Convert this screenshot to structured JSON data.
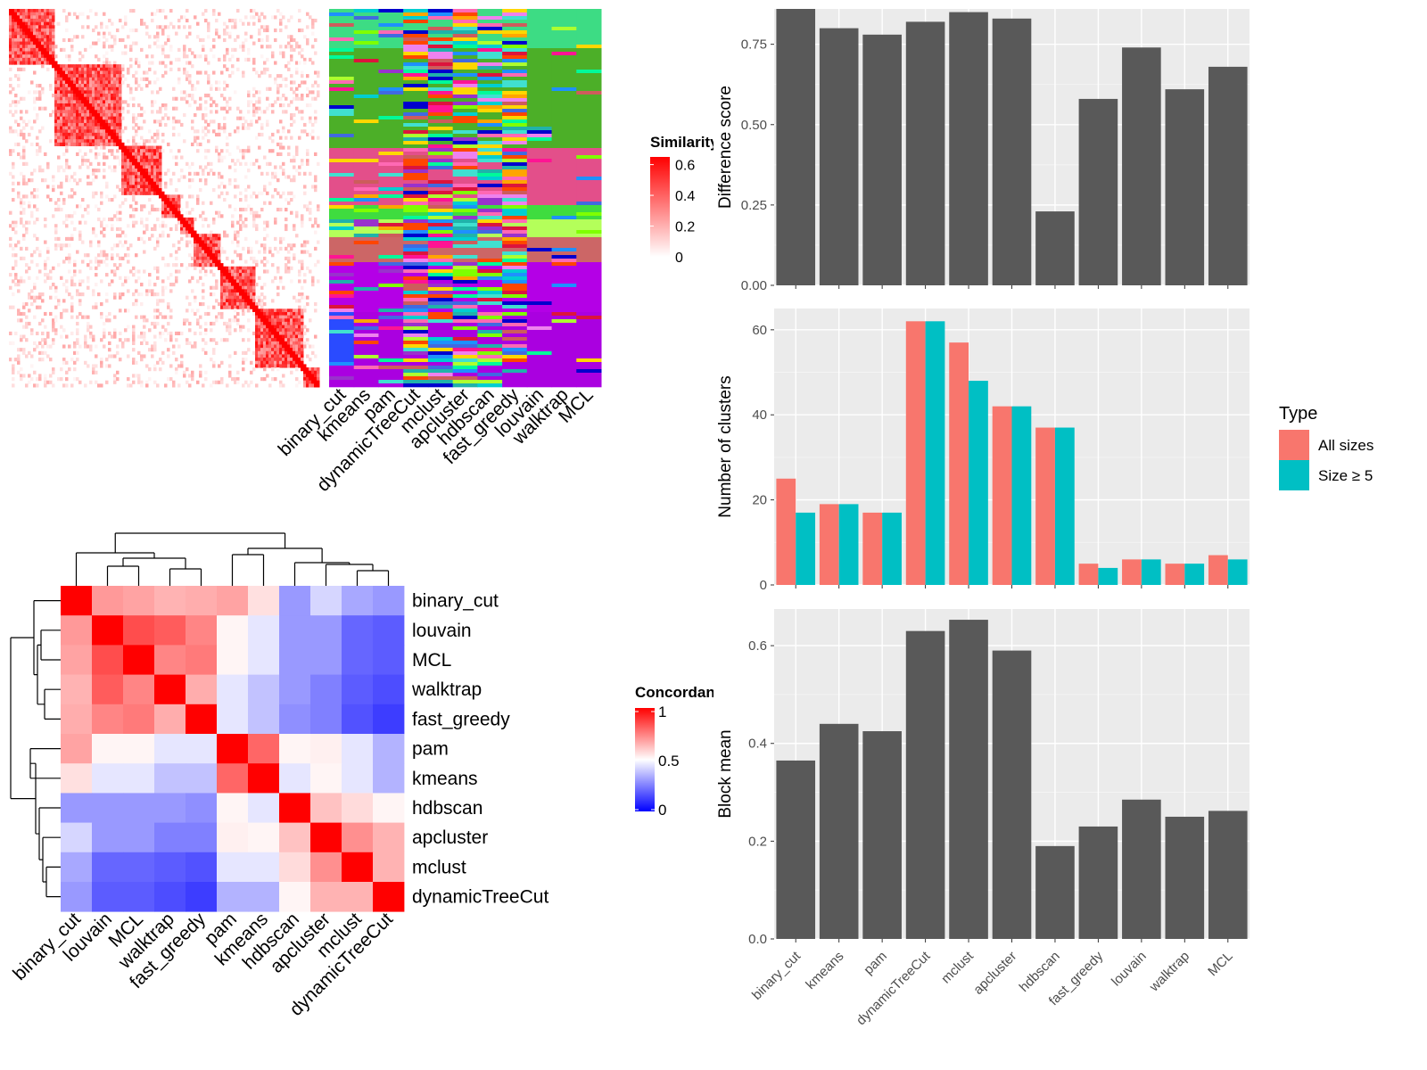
{
  "chart_data": [
    {
      "type": "heatmap",
      "panel": "similarity-matrix",
      "legend": {
        "title": "Similarity",
        "ticks": [
          0,
          0.2,
          0.4,
          0.6
        ],
        "tick_labels": [
          "0",
          "0.2",
          "0.4",
          "0.6"
        ],
        "colors": [
          "#ffffff",
          "#ff0000"
        ]
      },
      "description_colors": {
        "background": "#ffffff",
        "high": "#ff0000"
      }
    },
    {
      "type": "heatmap",
      "panel": "cluster-membership",
      "columns": [
        "binary_cut",
        "kmeans",
        "pam",
        "dynamicTreeCut",
        "mclust",
        "apcluster",
        "hdbscan",
        "fast_greedy",
        "louvain",
        "walktrap",
        "MCL"
      ]
    },
    {
      "type": "heatmap",
      "panel": "concordance",
      "legend": {
        "title": "Concordance",
        "ticks": [
          0,
          0.5,
          1
        ],
        "tick_labels": [
          "0",
          "0.5",
          "1"
        ],
        "colors": [
          "#0000ff",
          "#ffffff",
          "#ff0000"
        ]
      },
      "rows": [
        "binary_cut",
        "louvain",
        "MCL",
        "walktrap",
        "fast_greedy",
        "pam",
        "kmeans",
        "hdbscan",
        "apcluster",
        "mclust",
        "dynamicTreeCut"
      ],
      "cols": [
        "binary_cut",
        "louvain",
        "MCL",
        "walktrap",
        "fast_greedy",
        "pam",
        "kmeans",
        "hdbscan",
        "apcluster",
        "mclust",
        "dynamicTreeCut"
      ],
      "values": [
        [
          1.0,
          0.7,
          0.68,
          0.65,
          0.66,
          0.68,
          0.56,
          0.3,
          0.42,
          0.33,
          0.3
        ],
        [
          0.7,
          1.0,
          0.85,
          0.82,
          0.74,
          0.52,
          0.45,
          0.3,
          0.3,
          0.2,
          0.18
        ],
        [
          0.68,
          0.85,
          1.0,
          0.74,
          0.76,
          0.52,
          0.45,
          0.3,
          0.3,
          0.2,
          0.18
        ],
        [
          0.65,
          0.82,
          0.74,
          1.0,
          0.66,
          0.45,
          0.38,
          0.3,
          0.25,
          0.18,
          0.15
        ],
        [
          0.66,
          0.74,
          0.76,
          0.66,
          1.0,
          0.45,
          0.38,
          0.28,
          0.25,
          0.16,
          0.12
        ],
        [
          0.68,
          0.52,
          0.52,
          0.45,
          0.45,
          1.0,
          0.8,
          0.52,
          0.53,
          0.45,
          0.35
        ],
        [
          0.56,
          0.45,
          0.45,
          0.38,
          0.38,
          0.8,
          1.0,
          0.45,
          0.52,
          0.45,
          0.35
        ],
        [
          0.3,
          0.3,
          0.3,
          0.3,
          0.28,
          0.52,
          0.45,
          1.0,
          0.62,
          0.57,
          0.52
        ],
        [
          0.42,
          0.3,
          0.3,
          0.25,
          0.25,
          0.53,
          0.52,
          0.62,
          1.0,
          0.72,
          0.65
        ],
        [
          0.33,
          0.2,
          0.2,
          0.18,
          0.16,
          0.45,
          0.45,
          0.57,
          0.72,
          1.0,
          0.65
        ],
        [
          0.3,
          0.18,
          0.18,
          0.15,
          0.12,
          0.35,
          0.35,
          0.52,
          0.65,
          0.65,
          1.0
        ]
      ]
    },
    {
      "type": "bar",
      "panel": "difference-score",
      "categories": [
        "binary_cut",
        "kmeans",
        "pam",
        "dynamicTreeCut",
        "mclust",
        "apcluster",
        "hdbscan",
        "fast_greedy",
        "louvain",
        "walktrap",
        "MCL"
      ],
      "values": [
        0.86,
        0.8,
        0.78,
        0.82,
        0.85,
        0.83,
        0.23,
        0.58,
        0.74,
        0.61,
        0.68
      ],
      "ylabel": "Difference score",
      "ylim": [
        0,
        0.86
      ],
      "yticks": [
        0.0,
        0.25,
        0.5,
        0.75
      ],
      "ytick_labels": [
        "0.00",
        "0.25",
        "0.50",
        "0.75"
      ],
      "bar_color": "#595959",
      "panel_bg": "#ebebeb",
      "grid": true
    },
    {
      "type": "bar",
      "panel": "number-of-clusters",
      "categories": [
        "binary_cut",
        "kmeans",
        "pam",
        "dynamicTreeCut",
        "mclust",
        "apcluster",
        "hdbscan",
        "fast_greedy",
        "louvain",
        "walktrap",
        "MCL"
      ],
      "series": [
        {
          "name": "All sizes",
          "color": "#f8766d",
          "values": [
            25,
            19,
            17,
            62,
            57,
            42,
            37,
            5,
            6,
            5,
            7
          ]
        },
        {
          "name": "Size ≥ 5",
          "color": "#00bfc4",
          "values": [
            17,
            19,
            17,
            62,
            48,
            42,
            37,
            4,
            6,
            5,
            6
          ]
        }
      ],
      "ylabel": "Number of clusters",
      "ylim": [
        0,
        65
      ],
      "yticks": [
        0,
        20,
        40,
        60
      ],
      "ytick_labels": [
        "0",
        "20",
        "40",
        "60"
      ],
      "legend": {
        "title": "Type",
        "position": "right"
      },
      "panel_bg": "#ebebeb",
      "grid": true
    },
    {
      "type": "bar",
      "panel": "block-mean",
      "categories": [
        "binary_cut",
        "kmeans",
        "pam",
        "dynamicTreeCut",
        "mclust",
        "apcluster",
        "hdbscan",
        "fast_greedy",
        "louvain",
        "walktrap",
        "MCL"
      ],
      "values": [
        0.365,
        0.44,
        0.425,
        0.63,
        0.653,
        0.59,
        0.19,
        0.23,
        0.285,
        0.25,
        0.262
      ],
      "ylabel": "Block mean",
      "ylim": [
        0,
        0.675
      ],
      "yticks": [
        0.0,
        0.2,
        0.4,
        0.6
      ],
      "ytick_labels": [
        "0.0",
        "0.2",
        "0.4",
        "0.6"
      ],
      "bar_color": "#595959",
      "panel_bg": "#ebebeb",
      "grid": true
    }
  ]
}
